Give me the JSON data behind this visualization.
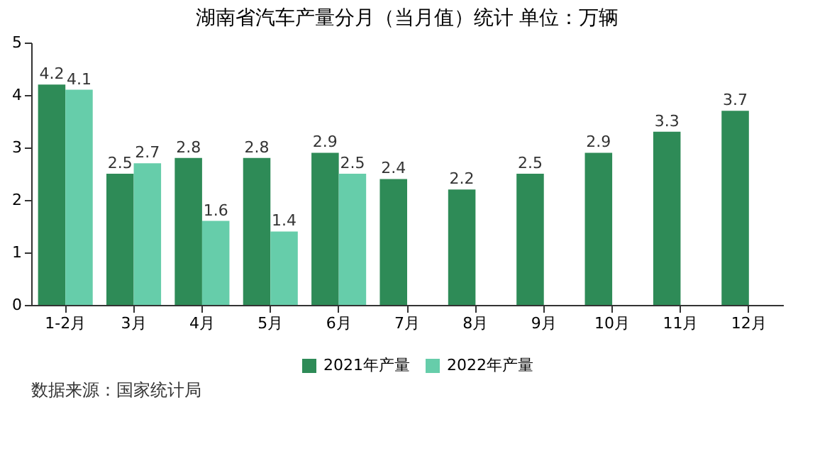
{
  "chart_data": {
    "type": "bar",
    "title": "湖南省汽车产量分月（当月值）统计 单位：万辆",
    "categories": [
      "1-2月",
      "3月",
      "4月",
      "5月",
      "6月",
      "7月",
      "8月",
      "9月",
      "10月",
      "11月",
      "12月"
    ],
    "series": [
      {
        "name": "2021年产量",
        "color": "#2e8b57",
        "values": [
          4.2,
          2.5,
          2.8,
          2.8,
          2.9,
          2.4,
          2.2,
          2.5,
          2.9,
          3.3,
          3.7
        ]
      },
      {
        "name": "2022年产量",
        "color": "#66cdaa",
        "values": [
          4.1,
          2.7,
          1.6,
          1.4,
          2.5,
          null,
          null,
          null,
          null,
          null,
          null
        ]
      }
    ],
    "ylim": [
      0,
      5
    ],
    "yticks": [
      0,
      1,
      2,
      3,
      4,
      5
    ],
    "grid": false,
    "legend": "bottom",
    "data_labels": true,
    "annotations": [
      "数据来源：国家统计局"
    ]
  }
}
